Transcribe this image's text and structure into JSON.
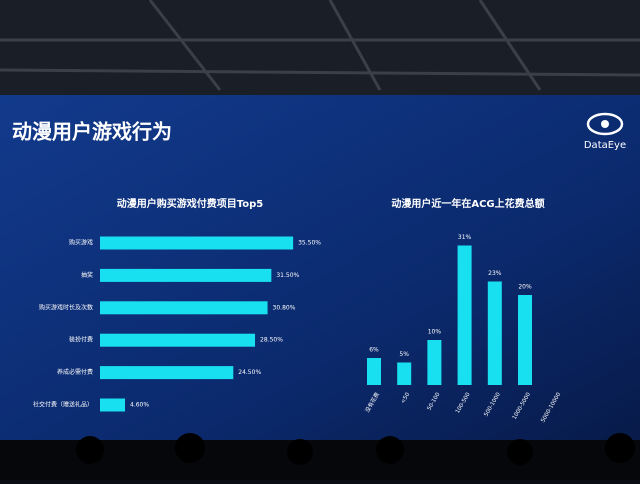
{
  "header": {
    "title": "动漫用户游戏行为",
    "logo": "DataEye"
  },
  "chart_data": [
    {
      "type": "hbar",
      "title": "动漫用户购买游戏付费项目Top5",
      "color": "#19e0f0",
      "categories": [
        "购买游戏",
        "抽奖",
        "购买游戏时长及次数",
        "装扮付费",
        "养成必需付费",
        "社交付费（赠送礼品）"
      ],
      "values": [
        35.5,
        31.5,
        30.8,
        28.5,
        24.5,
        4.6
      ],
      "value_labels": [
        "35.50%",
        "31.50%",
        "30.80%",
        "28.50%",
        "24.50%",
        "4.60%"
      ]
    },
    {
      "type": "bar",
      "title": "动漫用户近一年在ACG上花费总额",
      "color": "#19e0f0",
      "categories": [
        "没有花费",
        "<50",
        "50-100",
        "100-500",
        "500-1000",
        "1000-5000",
        "5000-10000"
      ],
      "values": [
        6,
        5,
        10,
        31,
        23,
        20,
        null
      ],
      "value_labels": [
        "6%",
        "5%",
        "10%",
        "31%",
        "23%",
        "20%",
        null
      ]
    }
  ]
}
